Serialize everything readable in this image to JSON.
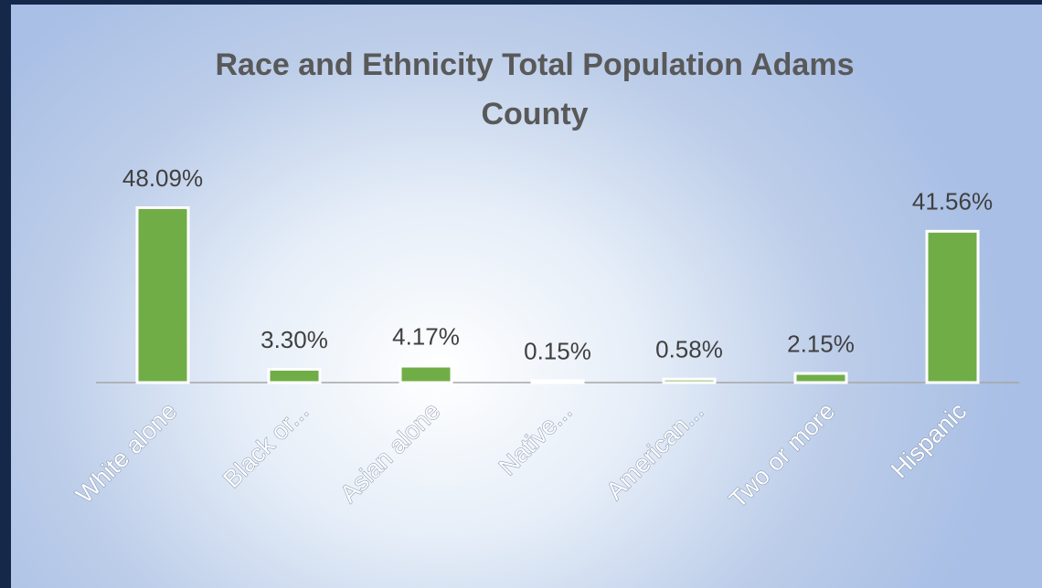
{
  "chart_data": {
    "type": "bar",
    "title": "Race and Ethnicity Total Population Adams County",
    "categories": [
      "White alone",
      "Black or...",
      "Asian alone",
      "Native...",
      "American...",
      "Two or more",
      "Hispanic"
    ],
    "values": [
      48.09,
      3.3,
      4.17,
      0.15,
      0.58,
      2.15,
      41.56
    ],
    "value_labels": [
      "48.09%",
      "3.30%",
      "4.17%",
      "0.15%",
      "0.58%",
      "2.15%",
      "41.56%"
    ],
    "color": "#70ad47"
  }
}
